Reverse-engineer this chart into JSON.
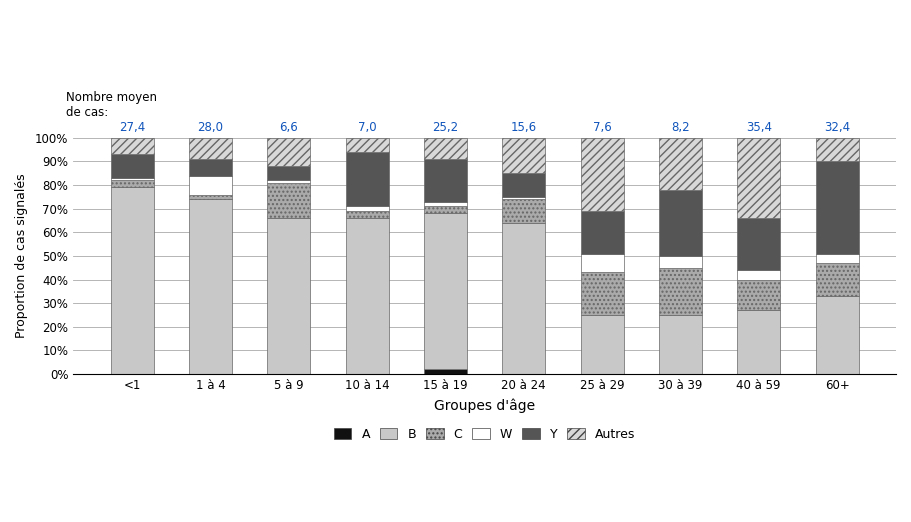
{
  "categories": [
    "<1",
    "1 à 4",
    "5 à 9",
    "10 à 14",
    "15 à 19",
    "20 à 24",
    "25 à 29",
    "30 à 39",
    "40 à 59",
    "60+"
  ],
  "avg_cases": [
    "27,4",
    "28,0",
    "6,6",
    "7,0",
    "25,2",
    "15,6",
    "7,6",
    "8,2",
    "35,4",
    "32,4"
  ],
  "segments": {
    "A": [
      0,
      0,
      0,
      0,
      2,
      0,
      0,
      0,
      0,
      0
    ],
    "B": [
      79,
      74,
      66,
      66,
      66,
      64,
      25,
      25,
      27,
      33
    ],
    "C": [
      3,
      2,
      15,
      3,
      3,
      10,
      18,
      20,
      13,
      14
    ],
    "W": [
      1,
      8,
      1,
      2,
      2,
      1,
      8,
      5,
      4,
      4
    ],
    "Y": [
      10,
      7,
      6,
      23,
      18,
      10,
      18,
      28,
      22,
      39
    ],
    "Autres": [
      7,
      9,
      12,
      6,
      9,
      15,
      31,
      22,
      34,
      10
    ]
  },
  "ylabel": "Proportion de cas signalés",
  "xlabel": "Groupes d'âge",
  "yticks": [
    0,
    10,
    20,
    30,
    40,
    50,
    60,
    70,
    80,
    90,
    100
  ],
  "top_label_line1": "Nombre moyen",
  "top_label_line2": "de cas:"
}
